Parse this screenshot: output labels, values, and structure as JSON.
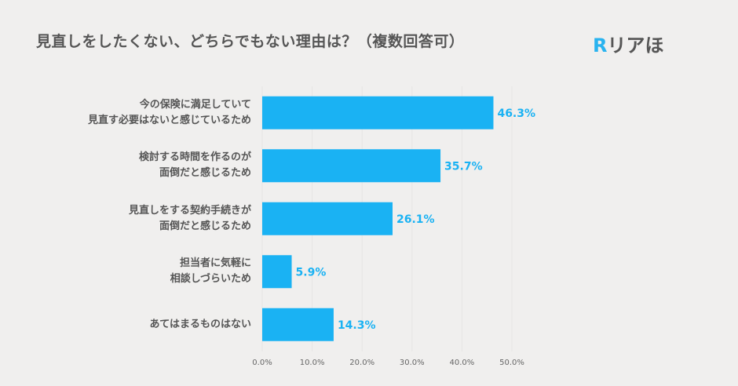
{
  "title": "見直しをしたくない、どちらでもない理由は？（複数回答可）",
  "logo": {
    "mark": "R",
    "text": "リアほ"
  },
  "chart_data": {
    "type": "bar",
    "orientation": "horizontal",
    "categories": [
      [
        "今の保険に満足していて",
        "見直す必要はないと感じているため"
      ],
      [
        "検討する時間を作るのが",
        "面倒だと感じるため"
      ],
      [
        "見直しをする契約手続きが",
        "面倒だと感じるため"
      ],
      [
        "担当者に気軽に",
        "相談しづらいため"
      ],
      [
        "あてはまるものはない"
      ]
    ],
    "values": [
      46.3,
      35.7,
      26.1,
      5.9,
      14.3
    ],
    "value_labels": [
      "46.3%",
      "35.7%",
      "26.1%",
      "5.9%",
      "14.3%"
    ],
    "xlim": [
      0,
      50
    ],
    "xticks": [
      "0.0%",
      "10.0%",
      "20.0%",
      "30.0%",
      "40.0%",
      "50.0%"
    ],
    "bar_color": "#1ab2f3",
    "grid": true
  }
}
